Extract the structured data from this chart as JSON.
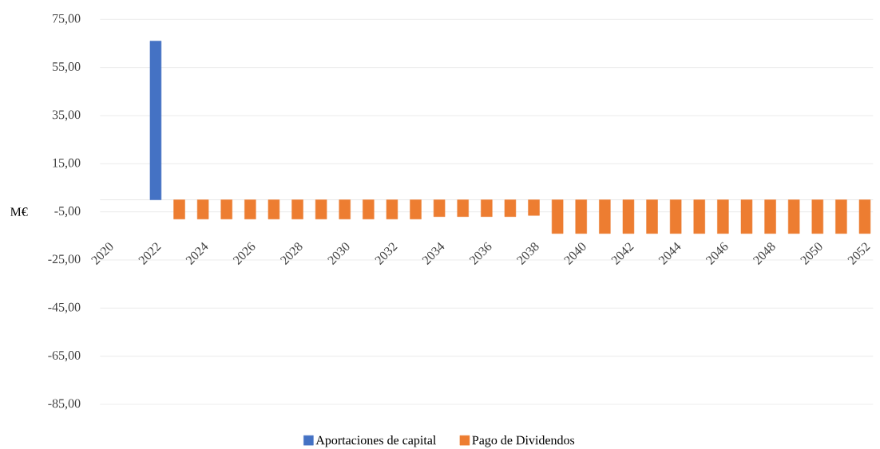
{
  "chart_data": {
    "type": "bar",
    "ylabel": "M€",
    "categories": [
      "2020",
      null,
      "2022",
      null,
      "2024",
      null,
      "2026",
      null,
      "2028",
      null,
      "2030",
      null,
      "2032",
      null,
      "2034",
      null,
      "2036",
      null,
      "2038",
      null,
      "2040",
      null,
      "2042",
      null,
      "2044",
      null,
      "2046",
      null,
      "2048",
      null,
      "2050",
      null,
      "2052"
    ],
    "series": [
      {
        "name": "Aportaciones de capital",
        "color": "#4472c4",
        "values": [
          null,
          null,
          66,
          null,
          null,
          null,
          null,
          null,
          null,
          null,
          null,
          null,
          null,
          null,
          null,
          null,
          null,
          null,
          null,
          null,
          null,
          null,
          null,
          null,
          null,
          null,
          null,
          null,
          null,
          null,
          null,
          null,
          null
        ]
      },
      {
        "name": "Pago de Dividendos",
        "color": "#ed7d31",
        "values": [
          null,
          null,
          null,
          -8,
          -8,
          -8,
          -8,
          -8,
          -8,
          -8,
          -8,
          -8,
          -8,
          -8,
          -7,
          -7,
          -7,
          -7,
          -6.5,
          -14,
          -14,
          -14,
          -14,
          -14,
          -14,
          -14,
          -14,
          -14,
          -14,
          -14,
          -14,
          -14,
          -14
        ]
      }
    ],
    "ylim": [
      -85,
      75
    ],
    "yticks": [
      {
        "value": 75,
        "label": "75,00"
      },
      {
        "value": 55,
        "label": "55,00"
      },
      {
        "value": 35,
        "label": "35,00"
      },
      {
        "value": 15,
        "label": "15,00"
      },
      {
        "value": -5,
        "label": "-5,00"
      },
      {
        "value": -25,
        "label": "-25,00"
      },
      {
        "value": -45,
        "label": "-45,00"
      },
      {
        "value": -65,
        "label": "-65,00"
      },
      {
        "value": -85,
        "label": "-85,00"
      }
    ],
    "grid": "y",
    "legend": "bottom"
  }
}
